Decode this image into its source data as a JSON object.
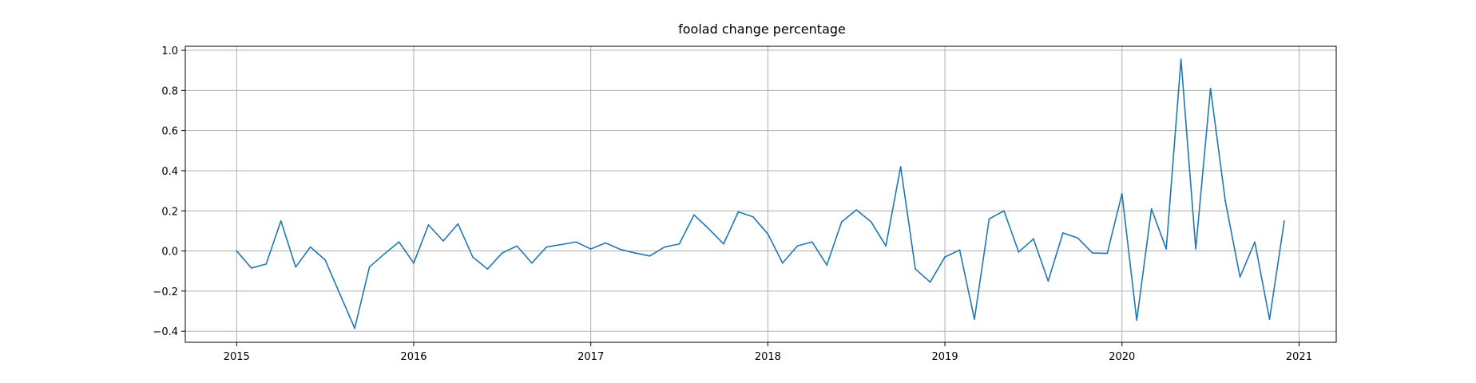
{
  "chart_data": {
    "type": "line",
    "title": "foolad change percentage",
    "xlabel": "",
    "ylabel": "",
    "grid": true,
    "xlim": [
      2014.71,
      2021.21
    ],
    "ylim": [
      -0.455,
      1.02
    ],
    "x_ticks": [
      2015,
      2016,
      2017,
      2018,
      2019,
      2020,
      2021
    ],
    "x_tick_labels": [
      "2015",
      "2016",
      "2017",
      "2018",
      "2019",
      "2020",
      "2021"
    ],
    "y_ticks": [
      -0.4,
      -0.2,
      0.0,
      0.2,
      0.4,
      0.6,
      0.8,
      1.0
    ],
    "y_tick_labels": [
      "−0.4",
      "−0.2",
      "0.0",
      "0.2",
      "0.4",
      "0.6",
      "0.8",
      "1.0"
    ],
    "series": [
      {
        "color": "#1f77b4",
        "points": [
          [
            "2015-01",
            0.0
          ],
          [
            "2015-02",
            -0.085
          ],
          [
            "2015-03",
            -0.065
          ],
          [
            "2015-04",
            0.15
          ],
          [
            "2015-05",
            -0.08
          ],
          [
            "2015-06",
            0.02
          ],
          [
            "2015-07",
            -0.045
          ],
          [
            "2015-08",
            -0.215
          ],
          [
            "2015-09",
            -0.385
          ],
          [
            "2015-10",
            -0.08
          ],
          [
            "2015-11",
            -0.015
          ],
          [
            "2015-12",
            0.045
          ],
          [
            "2016-01",
            -0.06
          ],
          [
            "2016-02",
            0.13
          ],
          [
            "2016-03",
            0.05
          ],
          [
            "2016-04",
            0.135
          ],
          [
            "2016-05",
            -0.03
          ],
          [
            "2016-06",
            -0.09
          ],
          [
            "2016-07",
            -0.01
          ],
          [
            "2016-08",
            0.025
          ],
          [
            "2016-09",
            -0.06
          ],
          [
            "2016-10",
            0.02
          ],
          [
            "2016-11",
            0.032
          ],
          [
            "2016-12",
            0.045
          ],
          [
            "2017-01",
            0.01
          ],
          [
            "2017-02",
            0.04
          ],
          [
            "2017-03",
            0.008
          ],
          [
            "2017-04",
            -0.01
          ],
          [
            "2017-05",
            -0.025
          ],
          [
            "2017-06",
            0.02
          ],
          [
            "2017-07",
            0.035
          ],
          [
            "2017-08",
            0.18
          ],
          [
            "2017-09",
            0.11
          ],
          [
            "2017-10",
            0.035
          ],
          [
            "2017-11",
            0.195
          ],
          [
            "2017-12",
            0.17
          ],
          [
            "2018-01",
            0.085
          ],
          [
            "2018-02",
            -0.06
          ],
          [
            "2018-03",
            0.025
          ],
          [
            "2018-04",
            0.045
          ],
          [
            "2018-05",
            -0.07
          ],
          [
            "2018-06",
            0.145
          ],
          [
            "2018-07",
            0.205
          ],
          [
            "2018-08",
            0.145
          ],
          [
            "2018-09",
            0.025
          ],
          [
            "2018-10",
            0.42
          ],
          [
            "2018-11",
            -0.09
          ],
          [
            "2018-12",
            -0.155
          ],
          [
            "2019-01",
            -0.03
          ],
          [
            "2019-02",
            0.005
          ],
          [
            "2019-03",
            -0.34
          ],
          [
            "2019-04",
            0.16
          ],
          [
            "2019-05",
            0.2
          ],
          [
            "2019-06",
            -0.005
          ],
          [
            "2019-07",
            0.06
          ],
          [
            "2019-08",
            -0.15
          ],
          [
            "2019-09",
            0.09
          ],
          [
            "2019-10",
            0.065
          ],
          [
            "2019-11",
            -0.01
          ],
          [
            "2019-12",
            -0.012
          ],
          [
            "2020-01",
            0.285
          ],
          [
            "2020-02",
            -0.345
          ],
          [
            "2020-03",
            0.21
          ],
          [
            "2020-04",
            0.01
          ],
          [
            "2020-05",
            0.955
          ],
          [
            "2020-06",
            0.01
          ],
          [
            "2020-07",
            0.81
          ],
          [
            "2020-08",
            0.25
          ],
          [
            "2020-09",
            -0.13
          ],
          [
            "2020-10",
            0.045
          ],
          [
            "2020-11",
            -0.34
          ],
          [
            "2020-12",
            0.15
          ]
        ]
      }
    ]
  }
}
